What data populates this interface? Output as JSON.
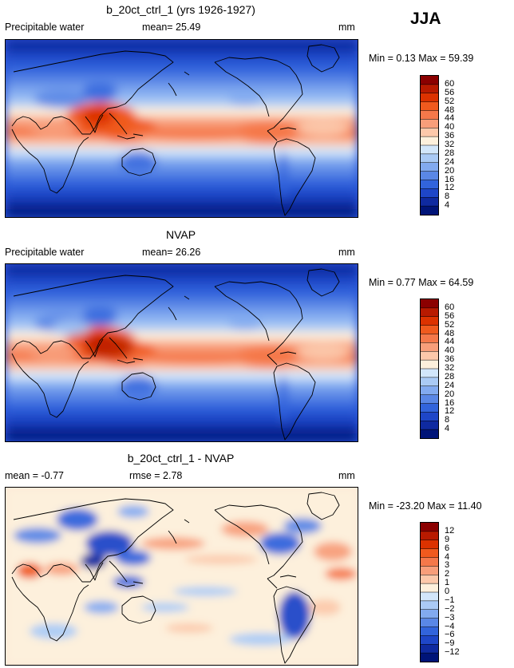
{
  "season": "JJA",
  "panels": [
    {
      "title": "b_20ct_ctrl_1 (yrs 1926-1927)",
      "left_label": "Precipitable water",
      "mid_label": "mean=  25.49",
      "unit": "mm",
      "minmax": "Min =   0.13  Max =  59.39",
      "levels": [
        "60",
        "56",
        "52",
        "48",
        "44",
        "40",
        "36",
        "32",
        "28",
        "24",
        "20",
        "16",
        "12",
        "8",
        "4"
      ],
      "colors": [
        "#8b0000",
        "#b81a00",
        "#dc3200",
        "#f05a1e",
        "#f5784a",
        "#f89e7a",
        "#fcc8aa",
        "#fdf0dc",
        "#d2e6fa",
        "#aacaf5",
        "#82aaf0",
        "#5a87e6",
        "#3264dc",
        "#1e46c8",
        "#0f2aa0",
        "#001478"
      ]
    },
    {
      "title": "NVAP",
      "left_label": "Precipitable water",
      "mid_label": "mean=  26.26",
      "unit": "mm",
      "minmax": "Min =   0.77  Max =  64.59",
      "levels": [
        "60",
        "56",
        "52",
        "48",
        "44",
        "40",
        "36",
        "32",
        "28",
        "24",
        "20",
        "16",
        "12",
        "8",
        "4"
      ],
      "colors": [
        "#8b0000",
        "#b81a00",
        "#dc3200",
        "#f05a1e",
        "#f5784a",
        "#f89e7a",
        "#fcc8aa",
        "#fdf0dc",
        "#d2e6fa",
        "#aacaf5",
        "#82aaf0",
        "#5a87e6",
        "#3264dc",
        "#1e46c8",
        "#0f2aa0",
        "#001478"
      ]
    },
    {
      "title": "b_20ct_ctrl_1 - NVAP",
      "left_label": "mean =  -0.77",
      "mid_label": "rmse =   2.78",
      "unit": "mm",
      "minmax": "Min = -23.20  Max =  11.40",
      "levels": [
        "12",
        "9",
        "6",
        "4",
        "3",
        "2",
        "1",
        "0",
        "−1",
        "−2",
        "−3",
        "−4",
        "−6",
        "−9",
        "−12"
      ],
      "colors": [
        "#8b0000",
        "#b81a00",
        "#dc3200",
        "#f05a1e",
        "#f5784a",
        "#f89e7a",
        "#fcc8aa",
        "#fdf0dc",
        "#d2e6fa",
        "#aacaf5",
        "#82aaf0",
        "#5a87e6",
        "#3264dc",
        "#1e46c8",
        "#0f2aa0",
        "#001478"
      ]
    }
  ]
}
